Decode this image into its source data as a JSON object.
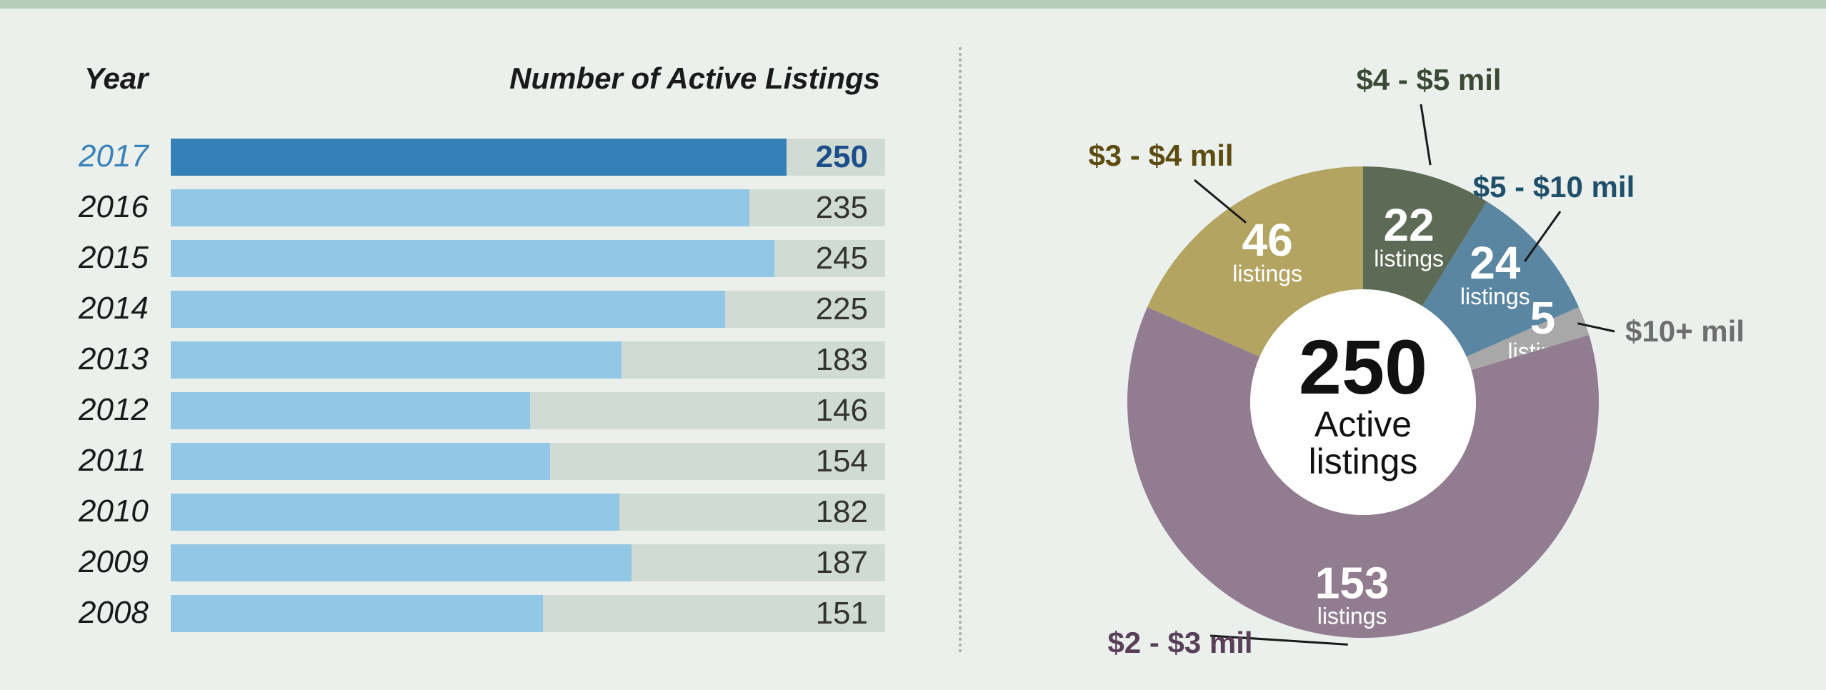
{
  "chart_data": [
    {
      "type": "bar",
      "orientation": "horizontal",
      "xlabel": "Year",
      "ylabel": "Number of Active Listings",
      "categories": [
        "2017",
        "2016",
        "2015",
        "2014",
        "2013",
        "2012",
        "2011",
        "2010",
        "2009",
        "2008"
      ],
      "values": [
        250,
        235,
        245,
        225,
        183,
        146,
        154,
        182,
        187,
        151
      ],
      "xlim": [
        0,
        290
      ],
      "highlight": "2017",
      "colors": {
        "bar": "#93c7e6",
        "highlight_bar": "#3580b7",
        "track": "#d0dcd3",
        "highlight_text": "#3a82ba"
      }
    },
    {
      "type": "pie",
      "donut": true,
      "center_value": "250",
      "center_label": [
        "Active",
        "listings"
      ],
      "unit_label": "listings",
      "slices": [
        {
          "label": "$4 - $5 mil",
          "value": 22,
          "color": "#5d6a55",
          "label_color": "#3b4a36"
        },
        {
          "label": "$5 - $10 mil",
          "value": 24,
          "color": "#5a86a2",
          "label_color": "#1f4f6b"
        },
        {
          "label": "$10+ mil",
          "value": 5,
          "color": "#a8a8a8",
          "label_color": "#6e6e6e"
        },
        {
          "label": "$2 - $3 mil",
          "value": 153,
          "color": "#927c90",
          "label_color": "#584058"
        },
        {
          "label": "$3 - $4 mil",
          "value": 46,
          "color": "#b3a462",
          "label_color": "#5c4c10"
        }
      ]
    }
  ]
}
